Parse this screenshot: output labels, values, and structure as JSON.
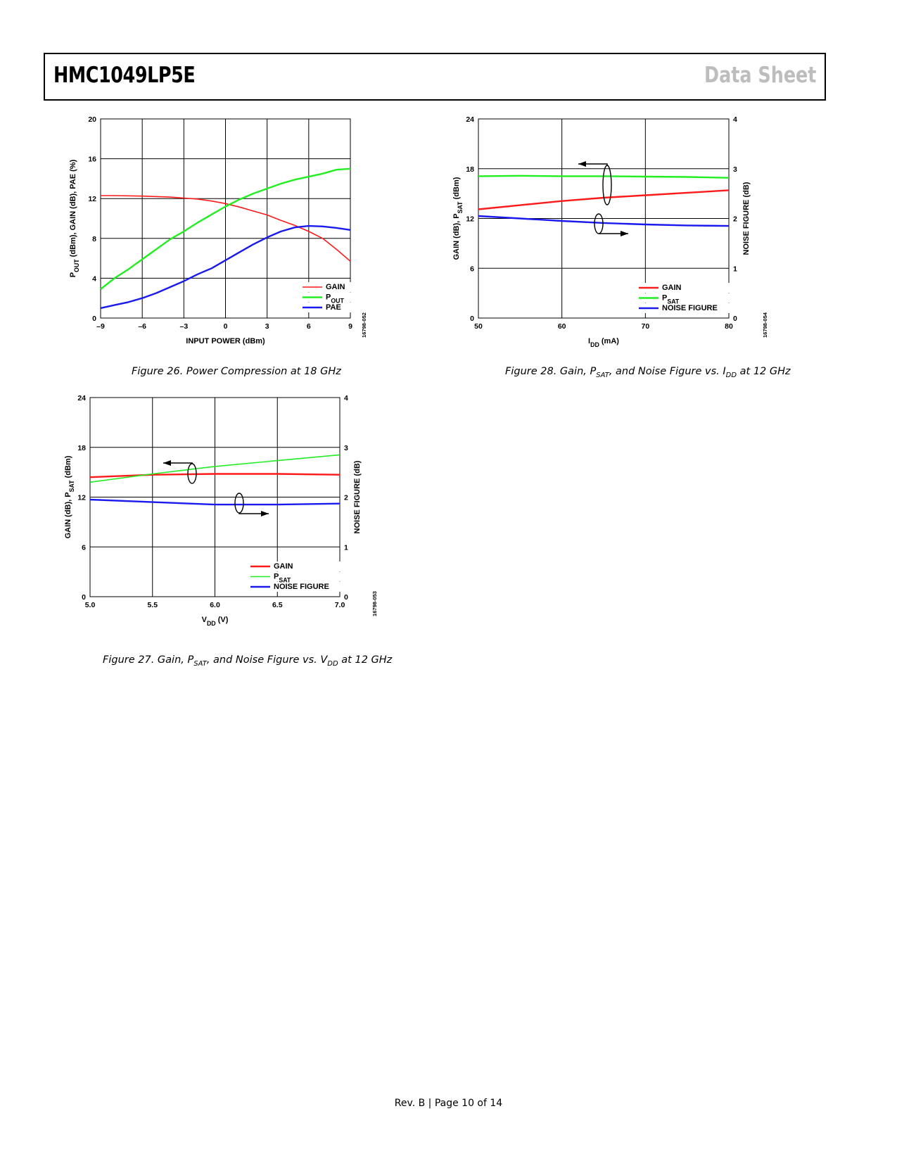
{
  "header": {
    "part_number": "HMC1049LP5E",
    "doc_type": "Data Sheet"
  },
  "footer": {
    "text": "Rev. B | Page 10 of 14"
  },
  "colors": {
    "gain": "#ff1a1a",
    "green": "#22ee22",
    "blue": "#1a1aee"
  },
  "figures": {
    "fig26": {
      "caption": "Figure 26. Power Compression at 18 GHz",
      "code": "16798-052"
    },
    "fig27": {
      "caption_pre": "Figure 27. Gain, P",
      "caption_sub1": "SAT",
      "caption_mid": ", and Noise Figure vs. V",
      "caption_sub2": "DD",
      "caption_post": " at 12 GHz",
      "code": "16798-053"
    },
    "fig28": {
      "caption_pre": "Figure 28. Gain, P",
      "caption_sub1": "SAT",
      "caption_mid": ", and Noise Figure vs. I",
      "caption_sub2": "DD",
      "caption_post": " at 12 GHz",
      "code": "16798-054"
    }
  },
  "chart_data": [
    {
      "id": "fig26",
      "type": "line",
      "xlabel": "INPUT POWER (dBm)",
      "ylabel_parts": [
        "P",
        "OUT",
        " (dBm), GAIN (dB), PAE (%)"
      ],
      "xlim": [
        -9,
        9
      ],
      "ylim": [
        0,
        20
      ],
      "xticks": [
        "–9",
        "–6",
        "–3",
        "0",
        "3",
        "6",
        "9"
      ],
      "yticks": [
        "0",
        "4",
        "8",
        "12",
        "16",
        "20"
      ],
      "grid": true,
      "legend": "bottom-right",
      "series": [
        {
          "name": "GAIN",
          "legend_parts": [
            "GAIN",
            "",
            ""
          ],
          "color": "#ff1a1a",
          "width": 1.6,
          "x": [
            -9,
            -8,
            -6,
            -4,
            -3,
            -2,
            -1,
            0,
            1,
            2,
            3,
            4,
            5,
            6,
            7,
            8,
            9
          ],
          "y": [
            12.3,
            12.3,
            12.25,
            12.15,
            12.05,
            11.95,
            11.75,
            11.5,
            11.15,
            10.75,
            10.35,
            9.8,
            9.3,
            8.7,
            8.0,
            6.9,
            5.7
          ]
        },
        {
          "name": "POUT",
          "legend_parts": [
            "P",
            "OUT",
            ""
          ],
          "color": "#22ee22",
          "width": 2.4,
          "x": [
            -9,
            -8,
            -7,
            -6,
            -5,
            -4,
            -3,
            -2,
            -1,
            0,
            1,
            2,
            3,
            4,
            5,
            6,
            7,
            8,
            9
          ],
          "y": [
            2.9,
            4.0,
            4.9,
            5.9,
            6.9,
            7.9,
            8.7,
            9.6,
            10.4,
            11.2,
            11.9,
            12.5,
            13.0,
            13.5,
            13.9,
            14.2,
            14.5,
            14.9,
            15.0
          ]
        },
        {
          "name": "PAE",
          "legend_parts": [
            "PAE",
            "",
            ""
          ],
          "color": "#1a1aee",
          "width": 2.4,
          "x": [
            -9,
            -8,
            -7,
            -6,
            -5,
            -4,
            -3,
            -2,
            -1,
            0,
            1,
            2,
            3,
            4,
            5,
            6,
            7,
            8,
            9
          ],
          "y": [
            1.0,
            1.3,
            1.6,
            2.0,
            2.5,
            3.1,
            3.7,
            4.4,
            5.0,
            5.8,
            6.6,
            7.4,
            8.1,
            8.7,
            9.1,
            9.25,
            9.2,
            9.05,
            8.85
          ]
        }
      ]
    },
    {
      "id": "fig28",
      "type": "line",
      "xlabel_parts": [
        "I",
        "DD",
        " (mA)"
      ],
      "ylabel_parts": [
        "GAIN (dB), P",
        "SAT",
        " (dBm)"
      ],
      "y2label": "NOISE FIGURE (dB)",
      "xlim": [
        50,
        80
      ],
      "ylim": [
        0,
        24
      ],
      "y2lim": [
        0,
        4
      ],
      "xticks": [
        "50",
        "60",
        "70",
        "80"
      ],
      "yticks": [
        "0",
        "6",
        "12",
        "18",
        "24"
      ],
      "y2ticks": [
        "0",
        "1",
        "2",
        "3",
        "4"
      ],
      "grid": true,
      "legend": "bottom-right",
      "series": [
        {
          "name": "GAIN",
          "legend_parts": [
            "GAIN",
            "",
            ""
          ],
          "color": "#ff1a1a",
          "width": 2.4,
          "axis": "left",
          "x": [
            50,
            55,
            60,
            65,
            70,
            75,
            80
          ],
          "y": [
            13.1,
            13.6,
            14.1,
            14.5,
            14.8,
            15.1,
            15.4
          ]
        },
        {
          "name": "PSAT",
          "legend_parts": [
            "P",
            "SAT",
            ""
          ],
          "color": "#22ee22",
          "width": 2.4,
          "axis": "left",
          "x": [
            50,
            55,
            60,
            65,
            70,
            75,
            80
          ],
          "y": [
            17.1,
            17.15,
            17.1,
            17.1,
            17.05,
            17.0,
            16.9
          ]
        },
        {
          "name": "NOISE FIGURE",
          "legend_parts": [
            "NOISE FIGURE",
            "",
            ""
          ],
          "color": "#1a1aee",
          "width": 2.4,
          "axis": "right",
          "x": [
            50,
            55,
            60,
            65,
            70,
            75,
            80
          ],
          "y": [
            2.05,
            2.0,
            1.95,
            1.91,
            1.88,
            1.86,
            1.85
          ]
        }
      ]
    },
    {
      "id": "fig27",
      "type": "line",
      "xlabel_parts": [
        "V",
        "DD",
        " (V)"
      ],
      "ylabel_parts": [
        "GAIN (dB), P",
        "SAT",
        " (dBm)"
      ],
      "y2label": "NOISE FIGURE (dB)",
      "xlim": [
        5.0,
        7.0
      ],
      "ylim": [
        0,
        24
      ],
      "y2lim": [
        0,
        4
      ],
      "xticks": [
        "5.0",
        "5.5",
        "6.0",
        "6.5",
        "7.0"
      ],
      "yticks": [
        "0",
        "6",
        "12",
        "18",
        "24"
      ],
      "y2ticks": [
        "0",
        "1",
        "2",
        "3",
        "4"
      ],
      "grid": true,
      "legend": "bottom-right",
      "series": [
        {
          "name": "GAIN",
          "legend_parts": [
            "GAIN",
            "",
            ""
          ],
          "color": "#ff1a1a",
          "width": 2.4,
          "axis": "left",
          "x": [
            5.0,
            5.5,
            6.0,
            6.5,
            7.0
          ],
          "y": [
            14.4,
            14.7,
            14.8,
            14.8,
            14.7
          ]
        },
        {
          "name": "PSAT",
          "legend_parts": [
            "P",
            "SAT",
            ""
          ],
          "color": "#22ee22",
          "width": 1.6,
          "axis": "left",
          "x": [
            5.0,
            5.5,
            6.0,
            6.5,
            7.0
          ],
          "y": [
            13.8,
            14.8,
            15.7,
            16.4,
            17.1
          ]
        },
        {
          "name": "NOISE FIGURE",
          "legend_parts": [
            "NOISE FIGURE",
            "",
            ""
          ],
          "color": "#1a1aee",
          "width": 2.4,
          "axis": "right",
          "x": [
            5.0,
            5.5,
            6.0,
            6.5,
            7.0
          ],
          "y": [
            1.95,
            1.9,
            1.85,
            1.85,
            1.87
          ]
        }
      ]
    }
  ]
}
